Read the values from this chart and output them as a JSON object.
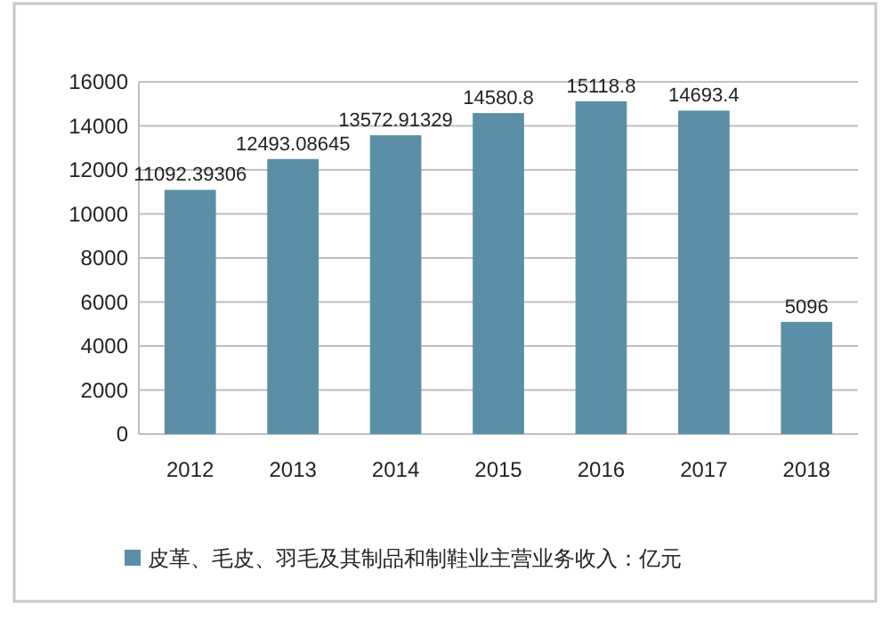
{
  "chart_data": {
    "type": "bar",
    "categories": [
      "2012",
      "2013",
      "2014",
      "2015",
      "2016",
      "2017",
      "2018"
    ],
    "series": [
      {
        "name": "皮革、毛皮、羽毛及其制品和制鞋业主营业务收入：亿元",
        "color": "#5b8fa8",
        "values": [
          11092.39306,
          12493.08645,
          13572.91329,
          14580.8,
          15118.8,
          14693.4,
          5096
        ]
      }
    ],
    "ylim": [
      0,
      16000
    ],
    "yticks": [
      0,
      2000,
      4000,
      6000,
      8000,
      10000,
      12000,
      14000,
      16000
    ],
    "grid": "y",
    "legend": "bottom",
    "data_labels": true
  }
}
